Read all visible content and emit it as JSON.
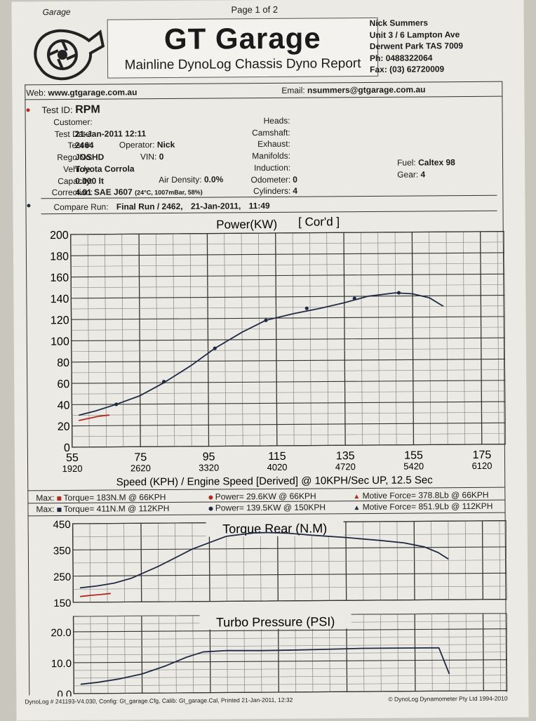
{
  "header": {
    "corner": "Garage",
    "page": "Page 1 of 2",
    "title": "GT Garage",
    "subtitle": "Mainline DynoLog Chassis Dyno Report",
    "address": [
      "Nick Summers",
      "Unit 3 / 6 Lampton Ave",
      "Derwent Park TAS 7009",
      "Ph: 0488322064",
      "Fax: (03) 62720009"
    ],
    "web_label": "Web:",
    "web": "www.gtgarage.com.au",
    "email_label": "Email:",
    "email": "nsummers@gtgarage.com.au"
  },
  "test": {
    "test_id_label": "Test ID:",
    "test_id": "RPM",
    "customer_label": "Customer:",
    "test_date_label": "Test Date:",
    "test_date": "21-Jan-2011 12:11",
    "test_num_label": "Test #:",
    "test_num": "2464",
    "operator_label": "Operator:",
    "operator": "Nick",
    "rego_label": "Rego No:",
    "rego": "JOSHD",
    "vin_label": "VIN:",
    "vin": "0",
    "vehicle_label": "Vehicle:",
    "vehicle": "Toyota Corrola",
    "capacity_label": "Capacity:",
    "capacity": "0.000 lt",
    "air_label": "Air Density:",
    "air": "0.0%",
    "correction_label": "Correction:",
    "correction": "4.01 SAE J607",
    "correction_detail": "(24°C, 1007mBar, 58%)",
    "heads_label": "Heads:",
    "camshaft_label": "Camshaft:",
    "exhaust_label": "Exhaust:",
    "manifolds_label": "Manifolds:",
    "induction_label": "Induction:",
    "odometer_label": "Odometer:",
    "odometer": "0",
    "cylinders_label": "Cylinders:",
    "cylinders": "4",
    "fuel_label": "Fuel:",
    "fuel": "Caltex 98",
    "gear_label": "Gear:",
    "gear": "4",
    "compare_label": "Compare Run:",
    "compare_run": "Final Run / 2462,",
    "compare_date": "21-Jan-2011,",
    "compare_time": "11:49"
  },
  "maxrows": {
    "row1": {
      "label": "Max:",
      "torque": "Torque= 183N.M @ 66KPH",
      "power": "Power= 29.6KW @ 66KPH",
      "force": "Motive Force= 378.8Lb @ 66KPH"
    },
    "row2": {
      "label": "Max:",
      "torque": "Torque= 411N.M @ 112KPH",
      "power": "Power= 139.5KW @ 150KPH",
      "force": "Motive Force= 851.9Lb @ 112KPH"
    }
  },
  "footer": {
    "left": "DynoLog # 241193-V4.030, Config: Gt_garage.Cfg, Calib: Gt_garage.Cal, Printed 21-Jan-2011, 12:32",
    "right": "© DynoLog Dynamometer Pty Ltd 1994-2010"
  },
  "chart_data": [
    {
      "type": "line",
      "title": "Power(KW)",
      "subtitle": "[ Cor'd ]",
      "xlabel": "Speed (KPH) / Engine Speed [Derived] @ 10KPH/Sec UP, 12.5 Sec",
      "xlim": [
        55,
        182
      ],
      "ylim": [
        0,
        200
      ],
      "x_ticks": [
        55,
        75,
        95,
        115,
        135,
        155,
        175
      ],
      "x_tick_labels": [
        "55",
        "75",
        "95",
        "115",
        "135",
        "155",
        "175"
      ],
      "rpm_tick_labels": [
        "1920",
        "2620",
        "3320",
        "4020",
        "4720",
        "5420",
        "6120"
      ],
      "y_ticks": [
        0,
        20,
        40,
        60,
        80,
        100,
        120,
        140,
        160,
        180,
        200
      ],
      "y_tick_labels": [
        "0",
        "20",
        "40",
        "60",
        "80",
        "100",
        "120",
        "140",
        "160",
        "180",
        "200"
      ],
      "grid": true,
      "series": [
        {
          "color": "#1f2a44",
          "x": [
            57,
            62,
            68,
            75,
            82,
            90,
            97,
            105,
            112,
            120,
            128,
            135,
            142,
            150,
            155,
            160,
            164
          ],
          "y": [
            30,
            34,
            40,
            48,
            60,
            76,
            92,
            107,
            118,
            124,
            129,
            134,
            140,
            143,
            142,
            138,
            130
          ]
        },
        {
          "color": "#b22a22",
          "x": [
            57,
            60,
            63,
            66
          ],
          "y": [
            25,
            27,
            29,
            30
          ]
        }
      ],
      "markers": {
        "color": "#1f2a44",
        "x": [
          68,
          82,
          97,
          112,
          124,
          138,
          151
        ],
        "y": [
          40,
          61,
          92,
          118,
          129,
          138,
          143
        ]
      }
    },
    {
      "type": "line",
      "title": "Torque Rear (N.M)",
      "xlim": [
        55,
        182
      ],
      "ylim": [
        150,
        450
      ],
      "y_ticks": [
        150,
        250,
        350,
        450
      ],
      "y_tick_labels": [
        "150",
        "250",
        "350",
        "450"
      ],
      "grid": true,
      "series": [
        {
          "color": "#1f2a44",
          "x": [
            57,
            62,
            67,
            72,
            80,
            90,
            100,
            108,
            112,
            118,
            125,
            135,
            145,
            152,
            158,
            162,
            165
          ],
          "y": [
            205,
            212,
            222,
            240,
            285,
            350,
            398,
            410,
            411,
            408,
            400,
            390,
            378,
            368,
            352,
            330,
            305
          ]
        },
        {
          "color": "#b22a22",
          "x": [
            57,
            60,
            63,
            66
          ],
          "y": [
            172,
            176,
            179,
            183
          ]
        }
      ]
    },
    {
      "type": "line",
      "title": "Turbo Pressure (PSI)",
      "xlim": [
        55,
        182
      ],
      "ylim": [
        0,
        25
      ],
      "y_ticks": [
        0,
        10,
        20
      ],
      "y_tick_labels": [
        "0.0",
        "10.0",
        "20.0"
      ],
      "grid": true,
      "series": [
        {
          "color": "#1f2a44",
          "x": [
            57,
            62,
            68,
            75,
            82,
            88,
            93,
            100,
            110,
            120,
            130,
            140,
            150,
            158,
            162,
            165
          ],
          "y": [
            3,
            3.6,
            4.6,
            6.2,
            8.8,
            11.5,
            13.2,
            13.6,
            13.5,
            13.6,
            13.8,
            14,
            14,
            14,
            14,
            5.5
          ]
        }
      ]
    }
  ]
}
